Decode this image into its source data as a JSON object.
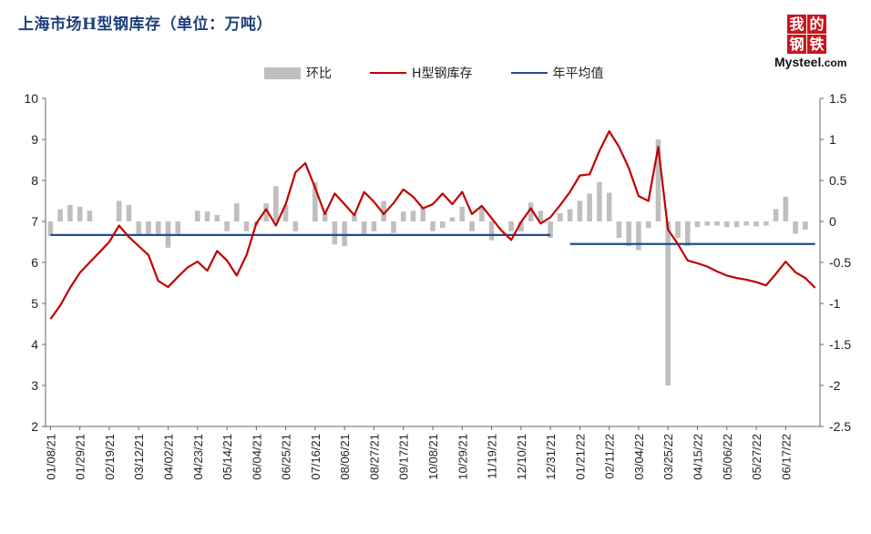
{
  "title": "上海市场H型钢库存（单位：万吨）",
  "logo": {
    "chars": [
      "我",
      "的",
      "钢",
      "铁"
    ],
    "word": "Mysteel",
    "suffix": ".com"
  },
  "chart_data": {
    "type": "bar+line",
    "legend": [
      {
        "name": "环比",
        "kind": "bar",
        "color": "#bfbfbf"
      },
      {
        "name": "H型钢库存",
        "kind": "line",
        "color": "#c00000"
      },
      {
        "name": "年平均值",
        "kind": "line",
        "color": "#1f4e8c"
      }
    ],
    "left_axis": {
      "min": 2,
      "max": 10,
      "ticks": [
        "2",
        "3",
        "4",
        "5",
        "6",
        "7",
        "8",
        "9",
        "10"
      ]
    },
    "right_axis": {
      "min": -2.5,
      "max": 1.5,
      "ticks": [
        "-2.5",
        "-2",
        "-1.5",
        "-1",
        "-0.5",
        "0",
        "0.5",
        "1",
        "1.5"
      ]
    },
    "x_tick_labels": [
      "01/08/21",
      "01/29/21",
      "02/19/21",
      "03/12/21",
      "04/02/21",
      "04/23/21",
      "05/14/21",
      "06/04/21",
      "06/25/21",
      "07/16/21",
      "08/06/21",
      "08/27/21",
      "09/17/21",
      "10/08/21",
      "10/29/21",
      "11/19/21",
      "12/10/21",
      "12/31/21",
      "01/21/22",
      "02/11/22",
      "03/04/22",
      "03/25/22",
      "04/15/22",
      "05/06/22",
      "05/27/22",
      "06/17/22"
    ],
    "points_per_tick": 3,
    "stock": [
      4.62,
      4.95,
      5.38,
      5.75,
      6.0,
      6.25,
      6.5,
      6.9,
      6.62,
      6.4,
      6.18,
      5.55,
      5.4,
      5.65,
      5.88,
      6.02,
      5.8,
      6.28,
      6.05,
      5.68,
      6.18,
      6.95,
      7.3,
      6.9,
      7.42,
      8.2,
      8.42,
      7.82,
      7.18,
      7.68,
      7.42,
      7.15,
      7.72,
      7.48,
      7.18,
      7.45,
      7.78,
      7.6,
      7.32,
      7.42,
      7.68,
      7.42,
      7.72,
      7.18,
      7.38,
      7.08,
      6.78,
      6.55,
      6.98,
      7.32,
      6.95,
      7.1,
      7.4,
      7.72,
      8.12,
      8.15,
      8.72,
      9.2,
      8.82,
      8.3,
      7.62,
      7.5,
      8.82,
      6.8,
      6.45,
      6.05,
      5.98,
      5.9,
      5.78,
      5.68,
      5.62,
      5.58,
      5.52,
      5.44,
      5.72,
      6.02,
      5.76,
      5.62,
      5.38
    ],
    "mom": [
      -0.18,
      0.15,
      0.2,
      0.18,
      0.13,
      0.0,
      0.0,
      0.25,
      0.2,
      -0.15,
      -0.15,
      -0.15,
      -0.32,
      -0.15,
      0.0,
      0.13,
      0.12,
      0.08,
      -0.12,
      0.22,
      -0.12,
      -0.05,
      0.22,
      0.43,
      0.2,
      -0.12,
      0.0,
      0.48,
      0.1,
      -0.28,
      -0.3,
      0.08,
      -0.15,
      -0.12,
      0.25,
      -0.14,
      0.12,
      0.13,
      0.17,
      -0.12,
      -0.08,
      0.05,
      0.18,
      -0.12,
      0.17,
      -0.23,
      0.0,
      -0.12,
      -0.12,
      0.23,
      0.13,
      -0.2,
      0.1,
      0.15,
      0.25,
      0.34,
      0.48,
      0.35,
      -0.2,
      -0.3,
      -0.35,
      -0.08,
      1.0,
      -2.0,
      -0.2,
      -0.3,
      -0.07,
      -0.05,
      -0.05,
      -0.07,
      -0.07,
      -0.05,
      -0.06,
      -0.05,
      0.15,
      0.3,
      -0.15,
      -0.1,
      0.0
    ],
    "annual_avg": [
      {
        "label": "2021",
        "value": 6.67
      },
      {
        "label": "2022",
        "value": 6.45
      }
    ]
  }
}
